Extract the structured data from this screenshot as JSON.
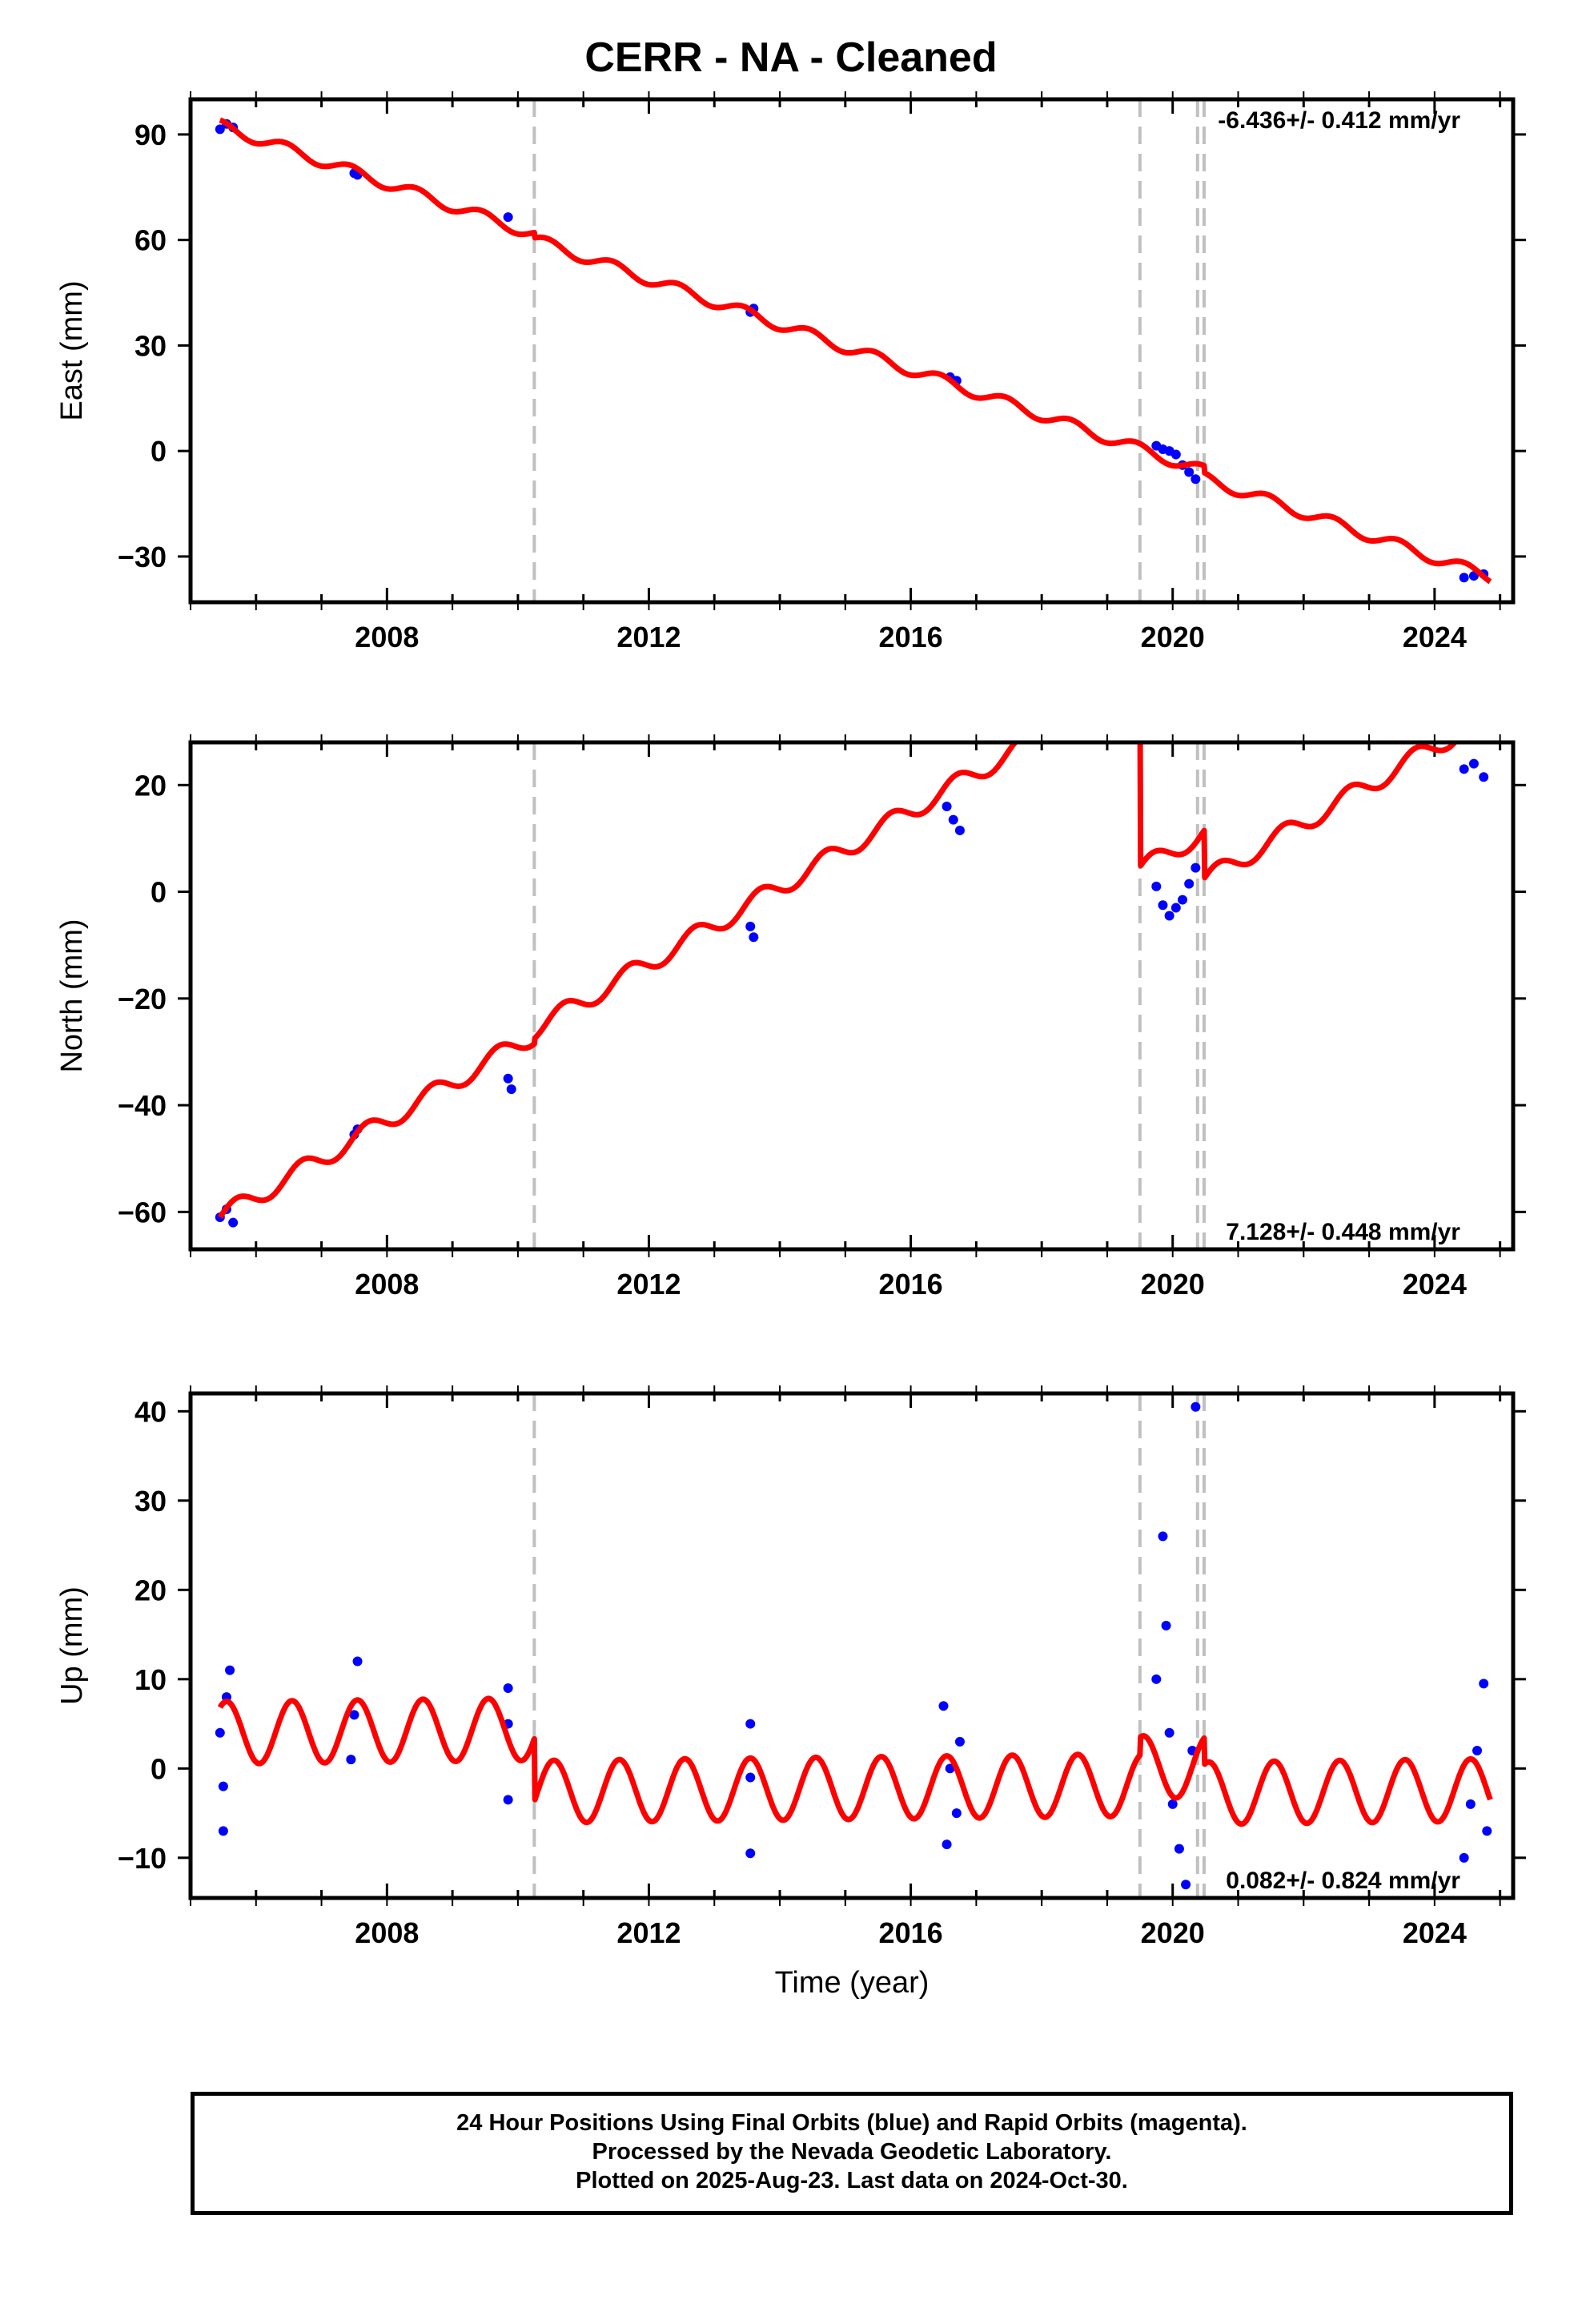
{
  "title": "CERR  - NA - Cleaned",
  "footer": {
    "line1": "24 Hour Positions Using Final Orbits (blue) and Rapid Orbits (magenta).",
    "line2": "Processed by the Nevada Geodetic Laboratory.",
    "line3": "Plotted on 2025-Aug-23. Last data on 2024-Oct-30."
  },
  "colors": {
    "data": "#0000ff",
    "model": "#ff0000",
    "breaks": "#c0c0c0"
  },
  "chart_data": [
    {
      "type": "scatter",
      "component": "east",
      "ylabel": "East (mm)",
      "xlabel": "",
      "xlim": [
        2005.0,
        2025.2
      ],
      "ylim": [
        -43,
        100
      ],
      "yticks": [
        -30,
        0,
        30,
        60,
        90
      ],
      "xticks": [
        2008,
        2012,
        2016,
        2020,
        2024
      ],
      "rate_label": "-6.436+/- 0.412 mm/yr",
      "rate_position": "top-right",
      "breaks": [
        2010.25,
        2019.5,
        2020.38,
        2020.48
      ],
      "model": {
        "rate": -6.436,
        "ref_year": 2005.45,
        "ref_value": 92.5,
        "annual_amplitude": 1.6,
        "annual_phase": 0.2,
        "offsets": [
          [
            2010.25,
            -1.5
          ],
          [
            2020.48,
            -2.0
          ]
        ]
      },
      "series": [
        {
          "values": [
            [
              2005.45,
              91.5
            ],
            [
              2005.55,
              93.0
            ],
            [
              2005.65,
              92.0
            ],
            [
              2007.5,
              79.0
            ],
            [
              2007.55,
              78.5
            ],
            [
              2009.85,
              66.5
            ],
            [
              2013.55,
              39.5
            ],
            [
              2013.6,
              40.5
            ],
            [
              2016.6,
              21.0
            ],
            [
              2016.7,
              20.0
            ],
            [
              2019.75,
              1.5
            ],
            [
              2019.85,
              0.5
            ],
            [
              2019.95,
              0.0
            ],
            [
              2020.05,
              -1.0
            ],
            [
              2020.15,
              -4.0
            ],
            [
              2020.25,
              -6.0
            ],
            [
              2020.35,
              -8.0
            ],
            [
              2024.45,
              -36.0
            ],
            [
              2024.6,
              -35.5
            ],
            [
              2024.75,
              -35.0
            ]
          ]
        }
      ]
    },
    {
      "type": "scatter",
      "component": "north",
      "ylabel": "North (mm)",
      "xlabel": "",
      "xlim": [
        2005.0,
        2025.2
      ],
      "ylim": [
        -67,
        28
      ],
      "yticks": [
        -60,
        -40,
        -20,
        0,
        20
      ],
      "xticks": [
        2008,
        2012,
        2016,
        2020,
        2024
      ],
      "rate_label": "7.128+/- 0.448 mm/yr",
      "rate_position": "bottom-right",
      "breaks": [
        2010.25,
        2019.5,
        2020.38,
        2020.48
      ],
      "model": {
        "rate": 7.128,
        "ref_year": 2005.45,
        "ref_value": -61.0,
        "annual_amplitude": 1.8,
        "annual_phase": 0.45,
        "offsets": [
          [
            2010.25,
            1.0
          ],
          [
            2019.5,
            -36.0
          ],
          [
            2020.48,
            -9.0
          ]
        ]
      },
      "series": [
        {
          "values": [
            [
              2005.45,
              -61.0
            ],
            [
              2005.55,
              -59.5
            ],
            [
              2005.65,
              -62.0
            ],
            [
              2007.5,
              -45.5
            ],
            [
              2007.55,
              -44.5
            ],
            [
              2009.85,
              -35.0
            ],
            [
              2009.9,
              -37.0
            ],
            [
              2013.55,
              -6.5
            ],
            [
              2013.6,
              -8.5
            ],
            [
              2016.55,
              16.0
            ],
            [
              2016.65,
              13.5
            ],
            [
              2016.75,
              11.5
            ],
            [
              2019.75,
              1.0
            ],
            [
              2019.85,
              -2.5
            ],
            [
              2019.95,
              -4.5
            ],
            [
              2020.05,
              -3.0
            ],
            [
              2020.15,
              -1.5
            ],
            [
              2020.25,
              1.5
            ],
            [
              2020.35,
              4.5
            ],
            [
              2024.45,
              23.0
            ],
            [
              2024.6,
              24.0
            ],
            [
              2024.75,
              21.5
            ]
          ]
        }
      ]
    },
    {
      "type": "scatter",
      "component": "up",
      "ylabel": "Up (mm)",
      "xlabel": "Time (year)",
      "xlim": [
        2005.0,
        2025.2
      ],
      "ylim": [
        -14.5,
        42
      ],
      "yticks": [
        -10,
        0,
        10,
        20,
        30,
        40
      ],
      "xticks": [
        2008,
        2012,
        2016,
        2020,
        2024
      ],
      "rate_label": "0.082+/- 0.824 mm/yr",
      "rate_position": "bottom-right",
      "breaks": [
        2010.25,
        2019.5,
        2020.38,
        2020.48
      ],
      "model": {
        "rate": 0.082,
        "ref_year": 2005.45,
        "ref_value": 4.0,
        "annual_amplitude": 3.5,
        "annual_phase": 0.3,
        "offsets": [
          [
            2010.25,
            -7.0
          ],
          [
            2019.5,
            2.0
          ],
          [
            2020.48,
            -3.0
          ]
        ]
      },
      "series": [
        {
          "values": [
            [
              2005.45,
              4.0
            ],
            [
              2005.5,
              -2.0
            ],
            [
              2005.55,
              8.0
            ],
            [
              2005.6,
              11.0
            ],
            [
              2005.5,
              -7.0
            ],
            [
              2007.5,
              6.0
            ],
            [
              2007.55,
              12.0
            ],
            [
              2007.45,
              1.0
            ],
            [
              2009.85,
              9.0
            ],
            [
              2009.85,
              5.0
            ],
            [
              2009.85,
              -3.5
            ],
            [
              2013.55,
              5.0
            ],
            [
              2013.55,
              -1.0
            ],
            [
              2013.55,
              -9.5
            ],
            [
              2016.5,
              7.0
            ],
            [
              2016.6,
              0.0
            ],
            [
              2016.7,
              -5.0
            ],
            [
              2016.55,
              -8.5
            ],
            [
              2016.75,
              3.0
            ],
            [
              2019.75,
              10.0
            ],
            [
              2019.85,
              26.0
            ],
            [
              2019.9,
              16.0
            ],
            [
              2019.95,
              4.0
            ],
            [
              2020.0,
              -4.0
            ],
            [
              2020.1,
              -9.0
            ],
            [
              2020.2,
              -13.0
            ],
            [
              2020.3,
              2.0
            ],
            [
              2020.35,
              40.5
            ],
            [
              2024.45,
              -10.0
            ],
            [
              2024.55,
              -4.0
            ],
            [
              2024.65,
              2.0
            ],
            [
              2024.75,
              9.5
            ],
            [
              2024.8,
              -7.0
            ]
          ]
        }
      ]
    }
  ]
}
